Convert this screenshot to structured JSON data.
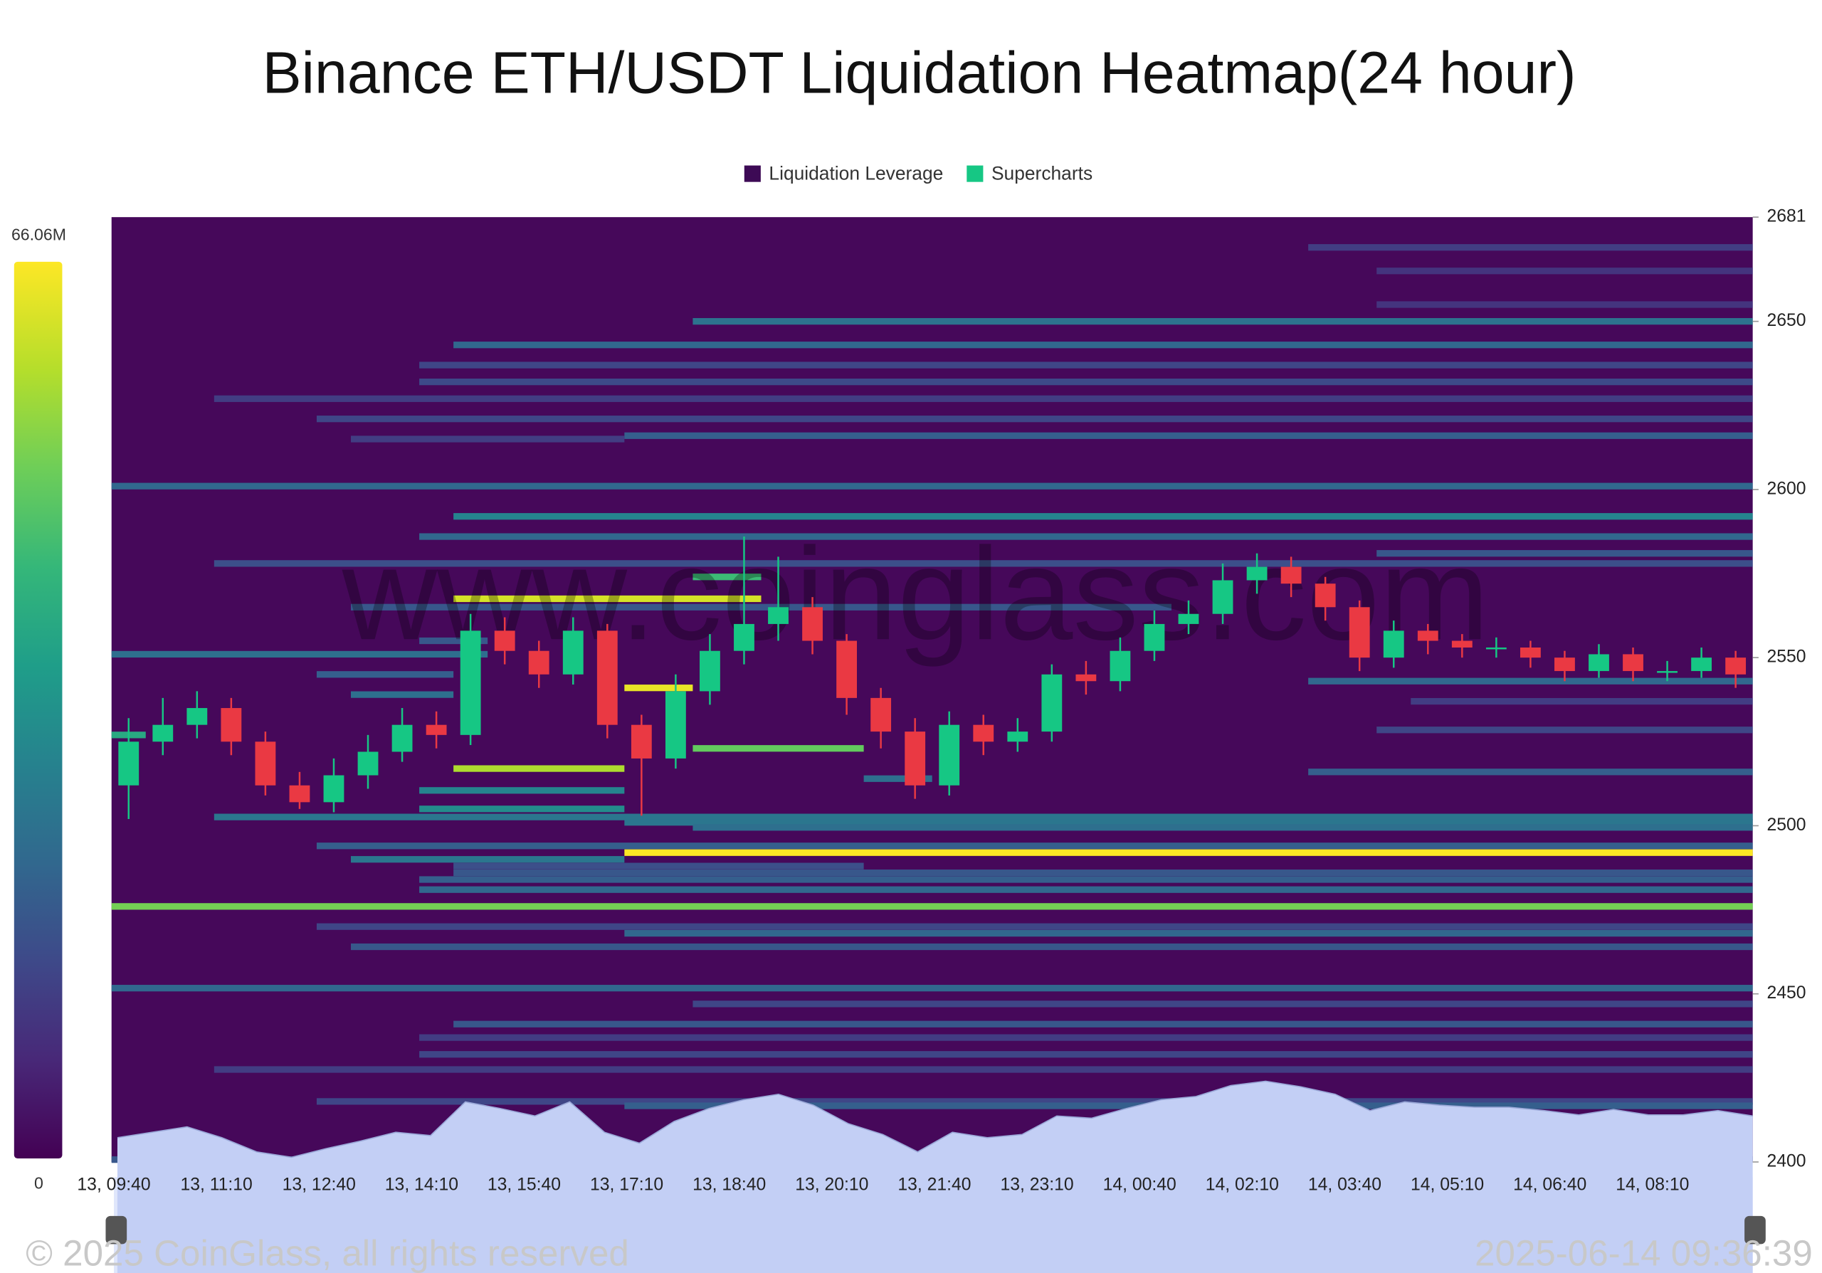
{
  "chart_data": {
    "type": "heatmap",
    "title": "Binance ETH/USDT Liquidation Heatmap(24 hour)",
    "legend": [
      {
        "name": "Liquidation Leverage",
        "color": "#3d0a55"
      },
      {
        "name": "Supercharts",
        "color": "#16c784"
      }
    ],
    "watermark": "www.coinglass.com",
    "footer_left": "© 2025 CoinGlass, all rights reserved",
    "footer_right": "2025-06-14 09:36:39",
    "colorbar": {
      "min": 0,
      "max": {
        "value": 66.06,
        "label": "66.06M"
      }
    },
    "ylim": [
      2400,
      2681
    ],
    "yticks": [
      2400,
      2450,
      2500,
      2550,
      2600,
      2650,
      2681
    ],
    "xticks": [
      "13, 09:40",
      "13, 11:10",
      "13, 12:40",
      "13, 14:10",
      "13, 15:40",
      "13, 17:10",
      "13, 18:40",
      "13, 20:10",
      "13, 21:40",
      "13, 23:10",
      "14, 00:40",
      "14, 02:10",
      "14, 03:40",
      "14, 05:10",
      "14, 06:40",
      "14, 08:10"
    ],
    "up_color": "#16c784",
    "down_color": "#ea3943",
    "candles": {
      "open": [
        2512,
        2525,
        2530,
        2535,
        2525,
        2512,
        2507,
        2515,
        2522,
        2530,
        2527,
        2558,
        2552,
        2545,
        2558,
        2530,
        2520,
        2540,
        2552,
        2560,
        2565,
        2555,
        2538,
        2528,
        2512,
        2530,
        2525,
        2528,
        2545,
        2543,
        2552,
        2560,
        2563,
        2573,
        2577,
        2572,
        2565,
        2550,
        2558,
        2555,
        2553,
        2553,
        2550,
        2546,
        2551,
        2546,
        2546,
        2550
      ],
      "high": [
        2532,
        2538,
        2540,
        2538,
        2528,
        2516,
        2520,
        2527,
        2535,
        2534,
        2563,
        2562,
        2555,
        2562,
        2560,
        2533,
        2545,
        2557,
        2586,
        2580,
        2568,
        2557,
        2541,
        2532,
        2534,
        2533,
        2532,
        2548,
        2549,
        2556,
        2564,
        2567,
        2578,
        2581,
        2580,
        2574,
        2567,
        2561,
        2560,
        2557,
        2556,
        2555,
        2552,
        2554,
        2553,
        2549,
        2553,
        2552
      ],
      "low": [
        2502,
        2521,
        2526,
        2521,
        2509,
        2505,
        2504,
        2511,
        2519,
        2523,
        2524,
        2548,
        2541,
        2542,
        2526,
        2503,
        2517,
        2536,
        2548,
        2555,
        2551,
        2533,
        2523,
        2508,
        2509,
        2521,
        2522,
        2525,
        2539,
        2540,
        2549,
        2557,
        2560,
        2569,
        2568,
        2561,
        2546,
        2547,
        2551,
        2550,
        2550,
        2547,
        2543,
        2544,
        2543,
        2543,
        2544,
        2541
      ],
      "close": [
        2525,
        2530,
        2535,
        2525,
        2512,
        2507,
        2515,
        2522,
        2530,
        2527,
        2558,
        2552,
        2545,
        2558,
        2530,
        2520,
        2540,
        2552,
        2560,
        2565,
        2555,
        2538,
        2528,
        2512,
        2530,
        2525,
        2528,
        2545,
        2543,
        2552,
        2560,
        2563,
        2573,
        2577,
        2572,
        2565,
        2550,
        2558,
        2555,
        2553,
        2553,
        2550,
        2546,
        2551,
        2546,
        2546,
        2550,
        2545
      ]
    },
    "bands": [
      {
        "price": 2672,
        "start": 35,
        "end": 48,
        "value": 12
      },
      {
        "price": 2665,
        "start": 37,
        "end": 48,
        "value": 10
      },
      {
        "price": 2655,
        "start": 37,
        "end": 48,
        "value": 10
      },
      {
        "price": 2650,
        "start": 17,
        "end": 48,
        "value": 25
      },
      {
        "price": 2643,
        "start": 10,
        "end": 48,
        "value": 22
      },
      {
        "price": 2637,
        "start": 9,
        "end": 48,
        "value": 14
      },
      {
        "price": 2632,
        "start": 9,
        "end": 48,
        "value": 15
      },
      {
        "price": 2627,
        "start": 3,
        "end": 48,
        "value": 12
      },
      {
        "price": 2621,
        "start": 6,
        "end": 48,
        "value": 14
      },
      {
        "price": 2616,
        "start": 15,
        "end": 48,
        "value": 20
      },
      {
        "price": 2615,
        "start": 7,
        "end": 15,
        "value": 12
      },
      {
        "price": 2601,
        "start": 0,
        "end": 48,
        "value": 22
      },
      {
        "price": 2592,
        "start": 10,
        "end": 48,
        "value": 30
      },
      {
        "price": 2586,
        "start": 9,
        "end": 48,
        "value": 22
      },
      {
        "price": 2581,
        "start": 37,
        "end": 48,
        "value": 18
      },
      {
        "price": 2578,
        "start": 3,
        "end": 48,
        "value": 16
      },
      {
        "price": 2574,
        "start": 17,
        "end": 19,
        "value": 45
      },
      {
        "price": 2567.5,
        "start": 10,
        "end": 19,
        "value": 62
      },
      {
        "price": 2565,
        "start": 7,
        "end": 31,
        "value": 18
      },
      {
        "price": 2555,
        "start": 9,
        "end": 11,
        "value": 18
      },
      {
        "price": 2551,
        "start": 0,
        "end": 11,
        "value": 24
      },
      {
        "price": 2545,
        "start": 6,
        "end": 10,
        "value": 20
      },
      {
        "price": 2543,
        "start": 35,
        "end": 48,
        "value": 22
      },
      {
        "price": 2541,
        "start": 15,
        "end": 17,
        "value": 64
      },
      {
        "price": 2539,
        "start": 7,
        "end": 10,
        "value": 24
      },
      {
        "price": 2537,
        "start": 38,
        "end": 48,
        "value": 12
      },
      {
        "price": 2528.5,
        "start": 37,
        "end": 48,
        "value": 14
      },
      {
        "price": 2527,
        "start": 0,
        "end": 1,
        "value": 40
      },
      {
        "price": 2523,
        "start": 17,
        "end": 22,
        "value": 50
      },
      {
        "price": 2517,
        "start": 10,
        "end": 15,
        "value": 58
      },
      {
        "price": 2516,
        "start": 35,
        "end": 48,
        "value": 20
      },
      {
        "price": 2514,
        "start": 22,
        "end": 24,
        "value": 24
      },
      {
        "price": 2510.5,
        "start": 9,
        "end": 15,
        "value": 30
      },
      {
        "price": 2505,
        "start": 9,
        "end": 15,
        "value": 32
      },
      {
        "price": 2502.6,
        "start": 3,
        "end": 48,
        "value": 26
      },
      {
        "price": 2501,
        "start": 15,
        "end": 48,
        "value": 26
      },
      {
        "price": 2499.5,
        "start": 17,
        "end": 48,
        "value": 24
      },
      {
        "price": 2494,
        "start": 6,
        "end": 48,
        "value": 20
      },
      {
        "price": 2492,
        "start": 15,
        "end": 48,
        "value": 66
      },
      {
        "price": 2490,
        "start": 7,
        "end": 15,
        "value": 26
      },
      {
        "price": 2488,
        "start": 10,
        "end": 22,
        "value": 16
      },
      {
        "price": 2486,
        "start": 10,
        "end": 48,
        "value": 18
      },
      {
        "price": 2484,
        "start": 9,
        "end": 48,
        "value": 20
      },
      {
        "price": 2481,
        "start": 9,
        "end": 48,
        "value": 22
      },
      {
        "price": 2476,
        "start": 0,
        "end": 48,
        "value": 52
      },
      {
        "price": 2470,
        "start": 6,
        "end": 48,
        "value": 14
      },
      {
        "price": 2468,
        "start": 15,
        "end": 48,
        "value": 22
      },
      {
        "price": 2464,
        "start": 7,
        "end": 48,
        "value": 18
      },
      {
        "price": 2451.7,
        "start": 0,
        "end": 48,
        "value": 22
      },
      {
        "price": 2447,
        "start": 17,
        "end": 48,
        "value": 14
      },
      {
        "price": 2441,
        "start": 10,
        "end": 48,
        "value": 18
      },
      {
        "price": 2437,
        "start": 9,
        "end": 48,
        "value": 12
      },
      {
        "price": 2432,
        "start": 9,
        "end": 48,
        "value": 14
      },
      {
        "price": 2427.5,
        "start": 3,
        "end": 48,
        "value": 12
      },
      {
        "price": 2418,
        "start": 6,
        "end": 48,
        "value": 14
      },
      {
        "price": 2416.7,
        "start": 15,
        "end": 48,
        "value": 20
      },
      {
        "price": 2400.7,
        "start": 0,
        "end": 48,
        "value": 18
      }
    ]
  }
}
